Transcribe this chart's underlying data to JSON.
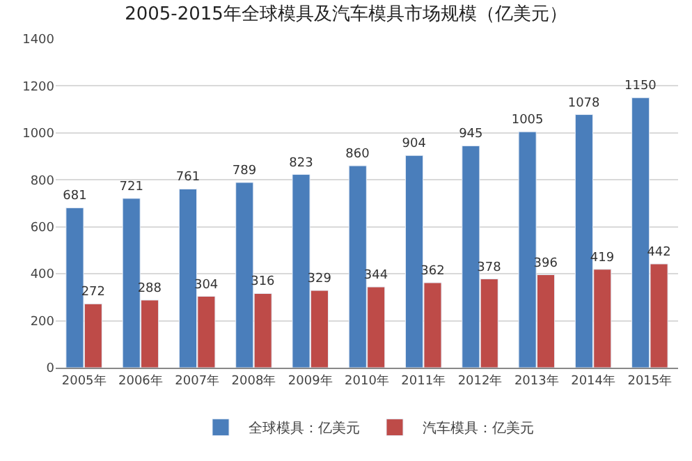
{
  "chart_data": {
    "type": "bar",
    "title": "2005-2015年全球模具及汽车模具市场规模（亿美元）",
    "categories": [
      "2005年",
      "2006年",
      "2007年",
      "2008年",
      "2009年",
      "2010年",
      "2011年",
      "2012年",
      "2013年",
      "2014年",
      "2015年"
    ],
    "series": [
      {
        "name": "全球模具：亿美元",
        "color": "#4a7ebb",
        "values": [
          681,
          721,
          761,
          789,
          823,
          860,
          904,
          945,
          1005,
          1078,
          1150
        ]
      },
      {
        "name": "汽车模具：亿美元",
        "color": "#be4b48",
        "values": [
          272,
          288,
          304,
          316,
          329,
          344,
          362,
          378,
          396,
          419,
          442
        ]
      }
    ],
    "ylim": [
      0,
      1400
    ],
    "yticks": [
      0,
      200,
      400,
      600,
      800,
      1000,
      1200,
      1400
    ],
    "grid": "y",
    "legend": "bottom",
    "data_labels": true
  }
}
